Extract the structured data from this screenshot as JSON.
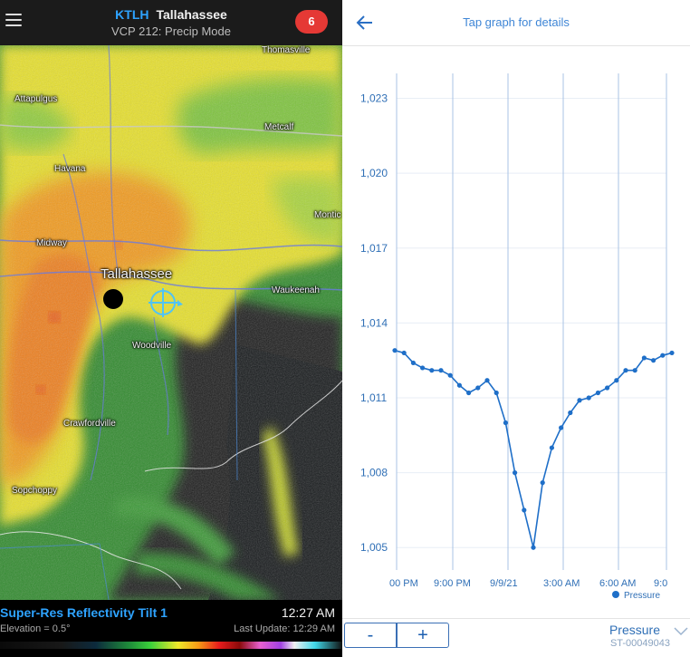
{
  "radar": {
    "header": {
      "station_id": "KTLH",
      "station_city": "Tallahassee",
      "vcp_mode": "VCP 212: Precip Mode",
      "alert_count": "6"
    },
    "cities": {
      "thomasville": "Thomasville",
      "attapulgus": "Attapulgus",
      "metcalf": "Metcalf",
      "havana": "Havana",
      "monticello": "Montic",
      "midway": "Midway",
      "tallahassee": "Tallahassee",
      "waukeenah": "Waukeenah",
      "woodville": "Woodville",
      "crawfordville": "Crawfordville",
      "sopchoppy": "Sopchoppy"
    },
    "footer": {
      "product": "Super-Res Reflectivity Tilt 1",
      "time": "12:27 AM",
      "elevation": "Elevation = 0.5°",
      "last_update": "Last Update: 12:29 AM"
    },
    "icons": [
      "menu-icon",
      "radar-site-icon",
      "crosshair-icon"
    ]
  },
  "graph": {
    "topbar": {
      "hint": "Tap graph for details"
    },
    "legend": "Pressure",
    "bottom": {
      "zoom_out": "-",
      "zoom_in": "+",
      "parameter": "Pressure",
      "station_code": "ST-00049043"
    },
    "icons": [
      "back-arrow-icon",
      "dropdown-chevron-icon"
    ],
    "accent_color": "#1f6fc8"
  },
  "chart_data": {
    "type": "line",
    "series": [
      {
        "name": "Pressure",
        "values": [
          1012.9,
          1012.8,
          1012.4,
          1012.2,
          1012.1,
          1012.1,
          1011.9,
          1011.5,
          1011.2,
          1011.4,
          1011.7,
          1011.2,
          1010.0,
          1008.0,
          1006.5,
          1005.0,
          1007.6,
          1009.0,
          1009.8,
          1010.4,
          1010.9,
          1011.0,
          1011.2,
          1011.4,
          1011.7,
          1012.1,
          1012.1,
          1012.6,
          1012.5,
          1012.7,
          1012.8
        ]
      }
    ],
    "x_tick_labels": [
      "00 PM",
      "9:00 PM",
      "9/9/21",
      "3:00 AM",
      "6:00 AM",
      "9:0"
    ],
    "y_tick_labels": [
      "1,005",
      "1,008",
      "1,011",
      "1,014",
      "1,017",
      "1,020",
      "1,023"
    ],
    "y_ticks": [
      1005,
      1008,
      1011,
      1014,
      1017,
      1020,
      1023
    ],
    "ylim": [
      1004.1,
      1024.0
    ],
    "legend_position": "bottom-right",
    "grid": true
  }
}
